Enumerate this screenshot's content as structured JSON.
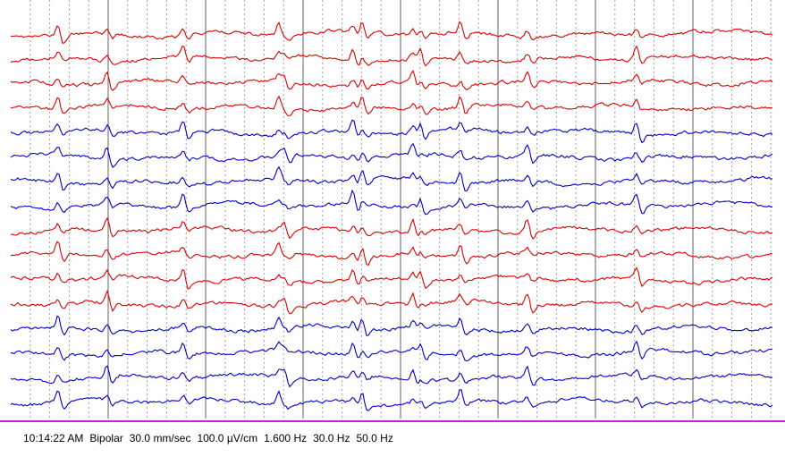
{
  "status_bar": {
    "time": "10:14:22 AM",
    "montage": "Bipolar",
    "paper_speed": "30.0 mm/sec",
    "sensitivity": "100.0 µV/cm",
    "low_filter": "1.600 Hz",
    "high_filter": "30.0 Hz",
    "notch_filter": "50.0 Hz"
  },
  "colors": {
    "red_channel": "#e00000",
    "blue_channel": "#0000d0",
    "second_line": "#606060",
    "sub_grid": "#a0a0a0",
    "status_line": "#cc22cc"
  },
  "waveform": {
    "channel_groups": [
      {
        "color": "red",
        "channels": 4
      },
      {
        "color": "blue",
        "channels": 4
      },
      {
        "color": "red",
        "channels": 4
      },
      {
        "color": "blue",
        "channels": 4
      }
    ]
  }
}
